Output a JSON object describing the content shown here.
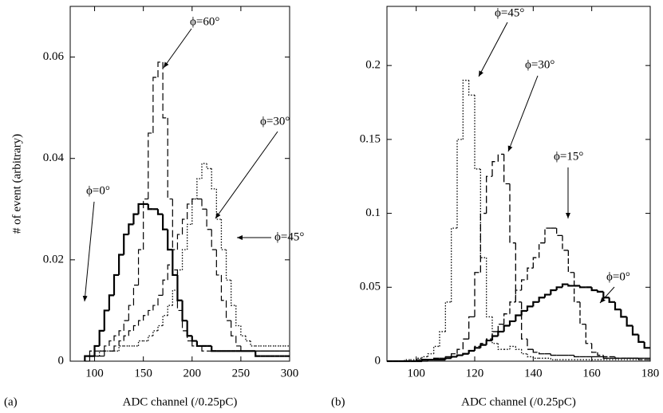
{
  "chart_data": [
    {
      "type": "histogram",
      "panel_label": "(a)",
      "x_label": "ADC channel (/0.25pC)",
      "y_label": "# of event (arbitrary)",
      "xlim": [
        75,
        300
      ],
      "xticks": [
        100,
        150,
        200,
        250,
        300
      ],
      "ylim": [
        0,
        0.07
      ],
      "yticks": [
        0,
        0.02,
        0.04,
        0.06
      ],
      "bins": [
        90,
        95,
        100,
        105,
        110,
        115,
        120,
        125,
        130,
        135,
        140,
        145,
        150,
        155,
        160,
        165,
        170,
        175,
        180,
        185,
        190,
        195,
        200,
        205,
        210,
        215,
        220,
        225,
        230,
        235,
        240,
        245,
        250,
        255,
        260,
        265,
        270,
        275,
        280,
        285,
        290,
        295,
        300
      ],
      "series": [
        {
          "name": "ϕ=0°",
          "color": "#000000",
          "style": "solid",
          "width": 2.2,
          "values": [
            0.001,
            0.001,
            0.003,
            0.006,
            0.01,
            0.013,
            0.017,
            0.021,
            0.025,
            0.027,
            0.029,
            0.031,
            0.031,
            0.03,
            0.03,
            0.029,
            0.026,
            0.022,
            0.017,
            0.012,
            0.008,
            0.005,
            0.004,
            0.003,
            0.003,
            0.003,
            0.002,
            0.002,
            0.002,
            0.002,
            0.002,
            0.002,
            0.002,
            0.002,
            0.002,
            0.001,
            0.001,
            0.001,
            0.001,
            0.001,
            0.001,
            0.001
          ]
        },
        {
          "name": "ϕ=60°",
          "color": "#000000",
          "style": "dashed",
          "width": 1.2,
          "values": [
            0.001,
            0.002,
            0.002,
            0.002,
            0.003,
            0.004,
            0.005,
            0.006,
            0.008,
            0.011,
            0.015,
            0.022,
            0.032,
            0.045,
            0.056,
            0.059,
            0.048,
            0.032,
            0.018,
            0.01,
            0.006,
            0.004,
            0.003,
            0.003,
            0.002,
            0.002,
            0.002,
            0.002,
            0.002,
            0.002,
            0.002,
            0.002,
            0.002,
            0.002,
            0.002,
            0.002,
            0.002,
            0.002,
            0.002,
            0.002,
            0.002,
            0.002
          ]
        },
        {
          "name": "ϕ=30°",
          "color": "#000000",
          "style": "dashed",
          "width": 1.2,
          "values": [
            0,
            0.001,
            0.001,
            0.001,
            0.002,
            0.002,
            0.003,
            0.004,
            0.005,
            0.006,
            0.007,
            0.008,
            0.009,
            0.01,
            0.011,
            0.013,
            0.016,
            0.019,
            0.022,
            0.025,
            0.028,
            0.031,
            0.032,
            0.032,
            0.03,
            0.026,
            0.022,
            0.017,
            0.012,
            0.008,
            0.005,
            0.003,
            0.002,
            0.002,
            0.002,
            0.002,
            0.002,
            0.002,
            0.002,
            0.002,
            0.002,
            0.002
          ]
        },
        {
          "name": "ϕ=45°",
          "color": "#000000",
          "style": "dotted",
          "width": 1.3,
          "values": [
            0.001,
            0.001,
            0.001,
            0.002,
            0.002,
            0.002,
            0.002,
            0.003,
            0.003,
            0.003,
            0.003,
            0.004,
            0.004,
            0.005,
            0.006,
            0.007,
            0.009,
            0.011,
            0.014,
            0.018,
            0.022,
            0.027,
            0.032,
            0.036,
            0.039,
            0.038,
            0.034,
            0.028,
            0.022,
            0.016,
            0.011,
            0.007,
            0.005,
            0.004,
            0.003,
            0.003,
            0.003,
            0.003,
            0.003,
            0.003,
            0.003,
            0.003
          ]
        }
      ]
    },
    {
      "type": "histogram",
      "panel_label": "(b)",
      "x_label": "ADC channel (/0.25pC)",
      "xlim": [
        90,
        180
      ],
      "xticks": [
        100,
        120,
        140,
        160,
        180
      ],
      "ylim": [
        0,
        0.24
      ],
      "yticks": [
        0,
        0.05,
        0.1,
        0.15,
        0.2
      ],
      "bins": [
        90,
        92,
        94,
        96,
        98,
        100,
        102,
        104,
        106,
        108,
        110,
        112,
        114,
        116,
        118,
        120,
        122,
        124,
        126,
        128,
        130,
        132,
        134,
        136,
        138,
        140,
        142,
        144,
        146,
        148,
        150,
        152,
        154,
        156,
        158,
        160,
        162,
        164,
        166,
        168,
        170,
        172,
        174,
        176,
        178,
        180
      ],
      "series": [
        {
          "name": "ϕ=45°",
          "color": "#000000",
          "style": "dotted",
          "width": 1.3,
          "values": [
            0,
            0,
            0,
            0.001,
            0.001,
            0.002,
            0.003,
            0.005,
            0.01,
            0.02,
            0.04,
            0.09,
            0.15,
            0.19,
            0.18,
            0.13,
            0.07,
            0.03,
            0.012,
            0.008,
            0.008,
            0.01,
            0.008,
            0.005,
            0.003,
            0.002,
            0.002,
            0.002,
            0.001,
            0.001,
            0.001,
            0.001,
            0.001,
            0.001,
            0.001,
            0.001,
            0.001,
            0.001,
            0.001,
            0.001,
            0.001,
            0.001,
            0.001,
            0.001,
            0.001
          ]
        },
        {
          "name": "ϕ=30°",
          "color": "#000000",
          "style": "dashed",
          "width": 1.3,
          "values": [
            0,
            0,
            0,
            0,
            0,
            0.001,
            0.001,
            0.001,
            0.002,
            0.002,
            0.003,
            0.005,
            0.008,
            0.015,
            0.03,
            0.06,
            0.1,
            0.125,
            0.135,
            0.14,
            0.12,
            0.08,
            0.04,
            0.015,
            0.008,
            0.006,
            0.005,
            0.005,
            0.004,
            0.004,
            0.004,
            0.004,
            0.003,
            0.003,
            0.003,
            0.003,
            0.003,
            0.002,
            0.002,
            0.002,
            0.002,
            0.002,
            0.002,
            0.002,
            0.002
          ]
        },
        {
          "name": "ϕ=15°",
          "color": "#000000",
          "style": "dashed2",
          "width": 1.3,
          "values": [
            0,
            0,
            0,
            0,
            0,
            0,
            0,
            0.001,
            0.001,
            0.001,
            0.002,
            0.003,
            0.004,
            0.005,
            0.007,
            0.01,
            0.012,
            0.015,
            0.02,
            0.025,
            0.032,
            0.04,
            0.048,
            0.055,
            0.063,
            0.07,
            0.08,
            0.09,
            0.09,
            0.085,
            0.075,
            0.06,
            0.04,
            0.025,
            0.012,
            0.006,
            0.004,
            0.003,
            0.003,
            0.002,
            0.002,
            0.002,
            0.002,
            0.001,
            0.001
          ]
        },
        {
          "name": "ϕ=0°",
          "color": "#000000",
          "style": "solid",
          "width": 2.2,
          "values": [
            0,
            0,
            0,
            0,
            0,
            0,
            0.001,
            0.001,
            0.001,
            0.001,
            0.002,
            0.003,
            0.004,
            0.005,
            0.007,
            0.009,
            0.011,
            0.014,
            0.017,
            0.02,
            0.024,
            0.027,
            0.031,
            0.034,
            0.037,
            0.04,
            0.043,
            0.045,
            0.048,
            0.05,
            0.052,
            0.051,
            0.051,
            0.05,
            0.05,
            0.048,
            0.047,
            0.043,
            0.04,
            0.035,
            0.03,
            0.024,
            0.018,
            0.013,
            0.009
          ]
        }
      ]
    }
  ]
}
